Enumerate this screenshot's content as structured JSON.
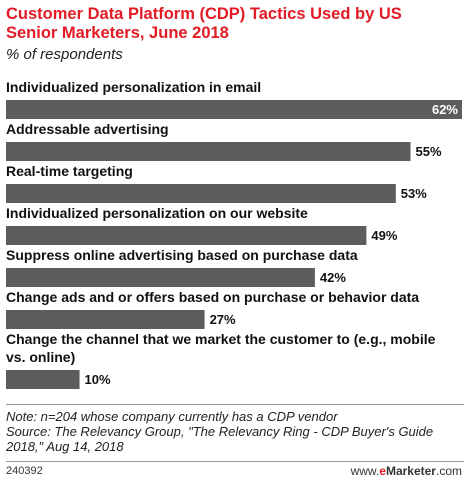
{
  "header": {
    "title": "Customer Data Platform (CDP) Tactics Used by US Senior Marketers, June 2018",
    "subtitle": "% of respondents"
  },
  "colors": {
    "title": "#e21b24",
    "bar": "#5d5d5d",
    "value_label_inside": "#ffffff",
    "value_label_outside": "#111111",
    "brand_accent": "#e21b24"
  },
  "chart_data": {
    "type": "bar",
    "orientation": "horizontal",
    "title": "Customer Data Platform (CDP) Tactics Used by US Senior Marketers, June 2018",
    "subtitle": "% of respondents",
    "categories": [
      "Individualized personalization in email",
      "Addressable advertising",
      "Real-time targeting",
      "Individualized personalization on our website",
      "Suppress online advertising based on purchase data",
      "Change ads and or offers based on purchase or behavior data",
      "Change the channel that we market the customer to (e.g., mobile vs. online)"
    ],
    "values": [
      62,
      55,
      53,
      49,
      42,
      27,
      10
    ],
    "value_labels": [
      "62%",
      "55%",
      "53%",
      "49%",
      "42%",
      "27%",
      "10%"
    ],
    "xlim": [
      0,
      62
    ],
    "grid": false,
    "legend": "none"
  },
  "footer": {
    "note": "Note: n=204 whose company currently has a CDP vendor",
    "source": "Source: The Relevancy Group, \"The Relevancy Ring - CDP Buyer's Guide 2018,\" Aug 14, 2018",
    "chart_id": "240392",
    "brand_prefix": "www.",
    "brand_e": "e",
    "brand_name": "Marketer",
    "brand_suffix": ".com"
  }
}
